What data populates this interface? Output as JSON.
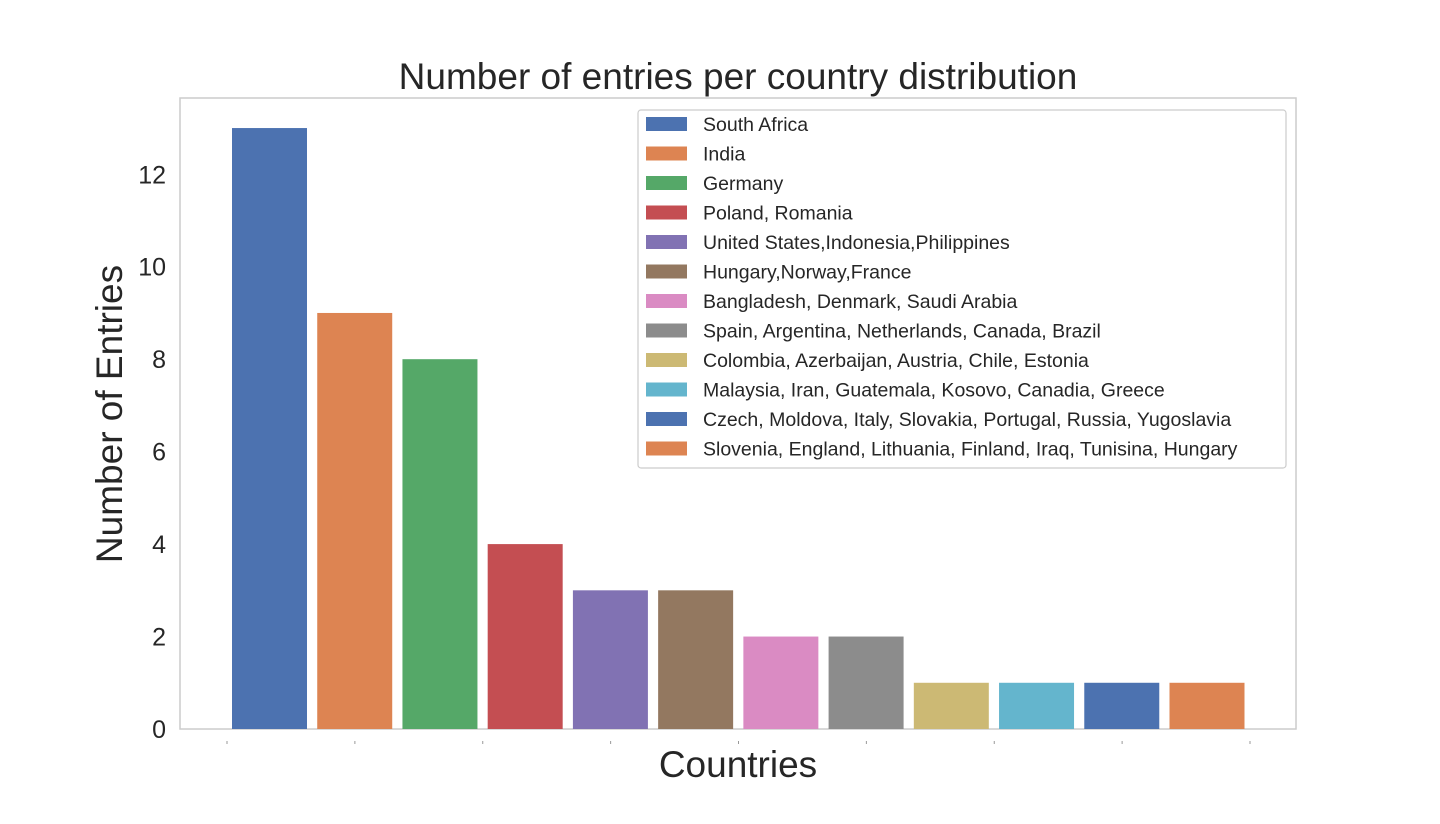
{
  "chart_data": {
    "type": "bar",
    "title": "Number of entries per country distribution",
    "xlabel": "Countries",
    "ylabel": "Number of Entries",
    "ylim": [
      0,
      13.65
    ],
    "yticks": [
      0,
      2,
      4,
      6,
      8,
      10,
      12
    ],
    "ytick_labels": [
      "0",
      "2",
      "4",
      "6",
      "8",
      "10",
      "12"
    ],
    "grid": false,
    "legend_position": "top-right",
    "x_tick_marks": 9,
    "series": [
      {
        "name": "South Africa",
        "value": 13,
        "color": "#4C72B0"
      },
      {
        "name": "India",
        "value": 9,
        "color": "#DD8452"
      },
      {
        "name": "Germany",
        "value": 8,
        "color": "#55A868"
      },
      {
        "name": "Poland, Romania",
        "value": 4,
        "color": "#C44E52"
      },
      {
        "name": "United States,Indonesia,Philippines",
        "value": 3,
        "color": "#8172B3"
      },
      {
        "name": "Hungary,Norway,France",
        "value": 3,
        "color": "#937860"
      },
      {
        "name": "Bangladesh, Denmark, Saudi Arabia",
        "value": 2,
        "color": "#DA8BC3"
      },
      {
        "name": "Spain, Argentina, Netherlands, Canada, Brazil",
        "value": 2,
        "color": "#8C8C8C"
      },
      {
        "name": "Colombia, Azerbaijan, Austria, Chile, Estonia",
        "value": 1,
        "color": "#CCB974"
      },
      {
        "name": "Malaysia, Iran, Guatemala, Kosovo, Canadia, Greece",
        "value": 1,
        "color": "#64B5CD"
      },
      {
        "name": "Czech, Moldova, Italy, Slovakia, Portugal, Russia, Yugoslavia",
        "value": 1,
        "color": "#4C72B0"
      },
      {
        "name": "Slovenia, England, Lithuania, Finland, Iraq, Tunisina, Hungary",
        "value": 1,
        "color": "#DD8452"
      }
    ]
  }
}
